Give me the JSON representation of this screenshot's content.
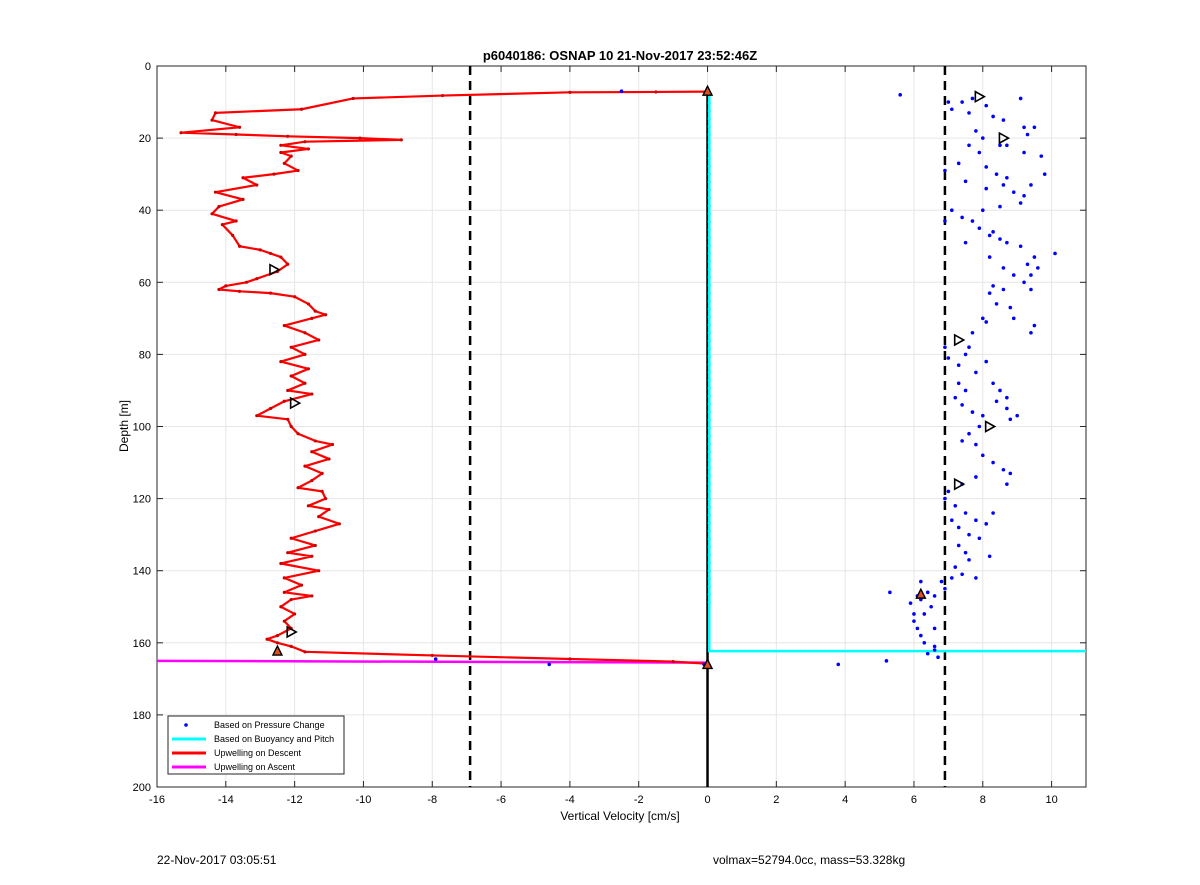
{
  "chart_data": {
    "type": "scatter",
    "title": "p6040186: OSNAP 10 21-Nov-2017 23:52:46Z",
    "xlabel": "Vertical Velocity [cm/s]",
    "ylabel": "Depth [m]",
    "xlim": [
      -16,
      11
    ],
    "ylim": [
      0,
      200
    ],
    "y_reversed": true,
    "grid": true,
    "x_ticks": [
      -16,
      -14,
      -12,
      -10,
      -8,
      -6,
      -4,
      -2,
      0,
      2,
      4,
      6,
      8,
      10
    ],
    "y_ticks": [
      0,
      20,
      40,
      60,
      80,
      100,
      120,
      140,
      160,
      180,
      200
    ],
    "legend_position": "bottom-left",
    "series": [
      {
        "name": "Based on Pressure Change",
        "color": "#0000ff",
        "style": "dots",
        "points": [
          [
            5.6,
            8
          ],
          [
            7,
            10
          ],
          [
            7.1,
            12
          ],
          [
            7.4,
            10
          ],
          [
            7.7,
            9
          ],
          [
            8.1,
            11
          ],
          [
            9.1,
            9
          ],
          [
            7.6,
            13
          ],
          [
            8.3,
            14
          ],
          [
            8.6,
            15
          ],
          [
            9.2,
            17
          ],
          [
            9.5,
            17
          ],
          [
            9.3,
            19
          ],
          [
            7.8,
            18
          ],
          [
            8,
            20
          ],
          [
            8.5,
            22
          ],
          [
            8.7,
            22
          ],
          [
            9.2,
            24
          ],
          [
            9.7,
            25
          ],
          [
            7.6,
            22
          ],
          [
            7.9,
            24
          ],
          [
            7.3,
            27
          ],
          [
            8.1,
            28
          ],
          [
            8.4,
            30
          ],
          [
            8.7,
            31
          ],
          [
            8.1,
            34
          ],
          [
            8.6,
            33
          ],
          [
            8.9,
            35
          ],
          [
            9.2,
            36
          ],
          [
            9.4,
            33
          ],
          [
            9.8,
            30
          ],
          [
            9.1,
            38
          ],
          [
            8.5,
            39
          ],
          [
            7.5,
            32
          ],
          [
            6.9,
            29
          ],
          [
            7.1,
            40
          ],
          [
            7.4,
            42
          ],
          [
            7.7,
            43
          ],
          [
            7.9,
            45
          ],
          [
            8.2,
            47
          ],
          [
            8.0,
            40
          ],
          [
            8.3,
            46
          ],
          [
            8.5,
            48
          ],
          [
            8.7,
            49
          ],
          [
            9.1,
            50
          ],
          [
            9.3,
            55
          ],
          [
            9.5,
            53
          ],
          [
            9.6,
            56
          ],
          [
            9.4,
            58
          ],
          [
            10.1,
            52
          ],
          [
            6.9,
            43
          ],
          [
            7.5,
            49
          ],
          [
            8.2,
            53
          ],
          [
            8.6,
            56
          ],
          [
            8.9,
            58
          ],
          [
            9.2,
            60
          ],
          [
            9.4,
            62
          ],
          [
            8.2,
            63
          ],
          [
            8.4,
            66
          ],
          [
            8.0,
            70
          ],
          [
            8.1,
            71
          ],
          [
            8.8,
            67
          ],
          [
            8.9,
            70
          ],
          [
            9.5,
            72
          ],
          [
            9.4,
            74
          ],
          [
            8.6,
            62
          ],
          [
            8.3,
            61
          ],
          [
            7.7,
            74
          ],
          [
            7.6,
            78
          ],
          [
            6.9,
            78
          ],
          [
            7.0,
            81
          ],
          [
            7.3,
            83
          ],
          [
            7.5,
            80
          ],
          [
            7.8,
            85
          ],
          [
            8.1,
            82
          ],
          [
            8.3,
            88
          ],
          [
            8.5,
            90
          ],
          [
            8.7,
            92
          ],
          [
            7.3,
            88
          ],
          [
            7.5,
            90
          ],
          [
            7.2,
            92
          ],
          [
            7.4,
            94
          ],
          [
            7.7,
            96
          ],
          [
            8.0,
            97
          ],
          [
            8.8,
            98
          ],
          [
            9.0,
            97
          ],
          [
            8.7,
            95
          ],
          [
            8.4,
            93
          ],
          [
            7.9,
            100
          ],
          [
            7.6,
            102
          ],
          [
            7.4,
            104
          ],
          [
            7.8,
            105
          ],
          [
            8.0,
            108
          ],
          [
            8.3,
            110
          ],
          [
            8.6,
            112
          ],
          [
            8.8,
            113
          ],
          [
            8.7,
            116
          ],
          [
            7.8,
            114
          ],
          [
            7.4,
            116
          ],
          [
            7.0,
            118
          ],
          [
            6.9,
            120
          ],
          [
            7.2,
            122
          ],
          [
            7.5,
            124
          ],
          [
            7.8,
            126
          ],
          [
            8.1,
            127
          ],
          [
            8.3,
            124
          ],
          [
            7.1,
            126
          ],
          [
            7.3,
            128
          ],
          [
            7.6,
            130
          ],
          [
            7.9,
            131
          ],
          [
            7.3,
            133
          ],
          [
            7.5,
            135
          ],
          [
            7.6,
            137
          ],
          [
            7.2,
            139
          ],
          [
            7.4,
            141
          ],
          [
            7.8,
            142
          ],
          [
            8.2,
            136
          ],
          [
            7.1,
            142
          ],
          [
            6.9,
            145
          ],
          [
            6.6,
            147
          ],
          [
            6.4,
            146
          ],
          [
            6.2,
            148
          ],
          [
            6.5,
            150
          ],
          [
            6.3,
            152
          ],
          [
            6.0,
            154
          ],
          [
            6.1,
            156
          ],
          [
            6.2,
            158
          ],
          [
            6.3,
            160
          ],
          [
            6.6,
            161
          ],
          [
            5.3,
            146
          ],
          [
            5.9,
            149
          ],
          [
            6.1,
            147
          ],
          [
            6.2,
            143
          ],
          [
            6.8,
            143
          ],
          [
            6.6,
            162
          ],
          [
            6.4,
            163
          ],
          [
            6.7,
            164
          ],
          [
            5.2,
            165
          ],
          [
            3.8,
            166
          ],
          [
            6.6,
            156
          ],
          [
            6.0,
            152
          ],
          [
            -0.1,
            166
          ],
          [
            -4.6,
            166
          ],
          [
            -7.9,
            164.5
          ],
          [
            -2.5,
            7
          ]
        ]
      },
      {
        "name": "Based on Buoyancy and Pitch",
        "color": "#00ffff",
        "style": "line",
        "points": [
          [
            0.05,
            7
          ],
          [
            0.05,
            150
          ],
          [
            0.05,
            162.3
          ],
          [
            11,
            162.3
          ]
        ]
      },
      {
        "name": "Upwelling on Descent",
        "color": "#ff0000",
        "style": "line-markers",
        "points": [
          [
            -0.05,
            7.1
          ],
          [
            -1.5,
            7.2
          ],
          [
            -4,
            7.3
          ],
          [
            -7.7,
            8.2
          ],
          [
            -10.3,
            9
          ],
          [
            -11.8,
            12
          ],
          [
            -14.3,
            13
          ],
          [
            -14.4,
            15
          ],
          [
            -13.6,
            17
          ],
          [
            -15.3,
            18.5
          ],
          [
            -13.7,
            19
          ],
          [
            -12.2,
            19.5
          ],
          [
            -10.1,
            20
          ],
          [
            -8.9,
            20.5
          ],
          [
            -11.7,
            21
          ],
          [
            -12.4,
            22
          ],
          [
            -11.6,
            23
          ],
          [
            -12.4,
            24
          ],
          [
            -12.1,
            25
          ],
          [
            -12.3,
            27
          ],
          [
            -11.9,
            29
          ],
          [
            -12.6,
            30
          ],
          [
            -13.5,
            31
          ],
          [
            -13.1,
            33
          ],
          [
            -14.3,
            35
          ],
          [
            -13.5,
            37
          ],
          [
            -14.2,
            39
          ],
          [
            -14.4,
            41
          ],
          [
            -13.7,
            43
          ],
          [
            -14.1,
            44
          ],
          [
            -13.8,
            47
          ],
          [
            -13.6,
            50
          ],
          [
            -13.0,
            51
          ],
          [
            -12.7,
            52
          ],
          [
            -12.4,
            53
          ],
          [
            -12.2,
            55
          ],
          [
            -12.5,
            57
          ],
          [
            -13.1,
            59
          ],
          [
            -13.4,
            60
          ],
          [
            -14.0,
            61
          ],
          [
            -14.2,
            62
          ],
          [
            -13.6,
            62.5
          ],
          [
            -12.7,
            63
          ],
          [
            -12.0,
            64
          ],
          [
            -11.6,
            66
          ],
          [
            -11.4,
            68
          ],
          [
            -11.1,
            69
          ],
          [
            -11.5,
            70
          ],
          [
            -12.3,
            72
          ],
          [
            -11.7,
            74
          ],
          [
            -11.3,
            76
          ],
          [
            -12.1,
            78
          ],
          [
            -11.7,
            80
          ],
          [
            -12.4,
            82
          ],
          [
            -11.6,
            84
          ],
          [
            -12.1,
            86
          ],
          [
            -11.7,
            88
          ],
          [
            -12.2,
            90
          ],
          [
            -11.5,
            91
          ],
          [
            -12.3,
            93
          ],
          [
            -12.7,
            95
          ],
          [
            -13.1,
            97
          ],
          [
            -12.2,
            98
          ],
          [
            -12.1,
            100
          ],
          [
            -11.9,
            102
          ],
          [
            -11.4,
            104
          ],
          [
            -10.9,
            105
          ],
          [
            -11.5,
            107
          ],
          [
            -11.0,
            109
          ],
          [
            -11.7,
            111
          ],
          [
            -11.2,
            113
          ],
          [
            -11.5,
            115
          ],
          [
            -11.9,
            117
          ],
          [
            -11.2,
            118
          ],
          [
            -11.1,
            120
          ],
          [
            -11.6,
            122
          ],
          [
            -11.0,
            123
          ],
          [
            -11.3,
            125
          ],
          [
            -10.7,
            127
          ],
          [
            -11.4,
            129
          ],
          [
            -12.1,
            131
          ],
          [
            -11.4,
            133
          ],
          [
            -12.2,
            135
          ],
          [
            -11.5,
            136
          ],
          [
            -12.4,
            138
          ],
          [
            -11.3,
            140
          ],
          [
            -12.3,
            142
          ],
          [
            -11.8,
            144
          ],
          [
            -12.3,
            146
          ],
          [
            -11.5,
            147
          ],
          [
            -12.1,
            148
          ],
          [
            -12.4,
            150
          ],
          [
            -12.0,
            152
          ],
          [
            -12.3,
            154
          ],
          [
            -12.1,
            156
          ],
          [
            -12.5,
            158
          ],
          [
            -12.8,
            159
          ],
          [
            -12.5,
            160
          ],
          [
            -12.1,
            161
          ],
          [
            -11.7,
            162.5
          ],
          [
            -8.0,
            163.5
          ],
          [
            -4.0,
            164.5
          ],
          [
            -1.0,
            165.2
          ],
          [
            -0.05,
            165.8
          ]
        ]
      },
      {
        "name": "Upwelling on Ascent",
        "color": "#ff00ff",
        "style": "line",
        "points": [
          [
            -16,
            165
          ],
          [
            -0.05,
            165.5
          ]
        ]
      }
    ],
    "markers": {
      "descent_triangles": [
        [
          -12.6,
          56.5
        ],
        [
          -12.0,
          93.5
        ],
        [
          -12.1,
          157
        ]
      ],
      "descent_filled": [
        [
          -12.5,
          162.3
        ],
        [
          0.0,
          7
        ],
        [
          0.0,
          166
        ]
      ],
      "right_triangles": [
        [
          7.9,
          8.5
        ],
        [
          8.6,
          20
        ],
        [
          7.3,
          76
        ],
        [
          8.2,
          100
        ],
        [
          7.3,
          116
        ]
      ],
      "right_filled": [
        [
          6.2,
          146.5
        ]
      ]
    },
    "reference_lines": {
      "vertical_dashed": [
        -6.9,
        6.9
      ],
      "vertical_solid": [
        0
      ]
    }
  },
  "footer": {
    "left": "22-Nov-2017 03:05:51",
    "right": "volmax=52794.0cc, mass=53.328kg"
  }
}
